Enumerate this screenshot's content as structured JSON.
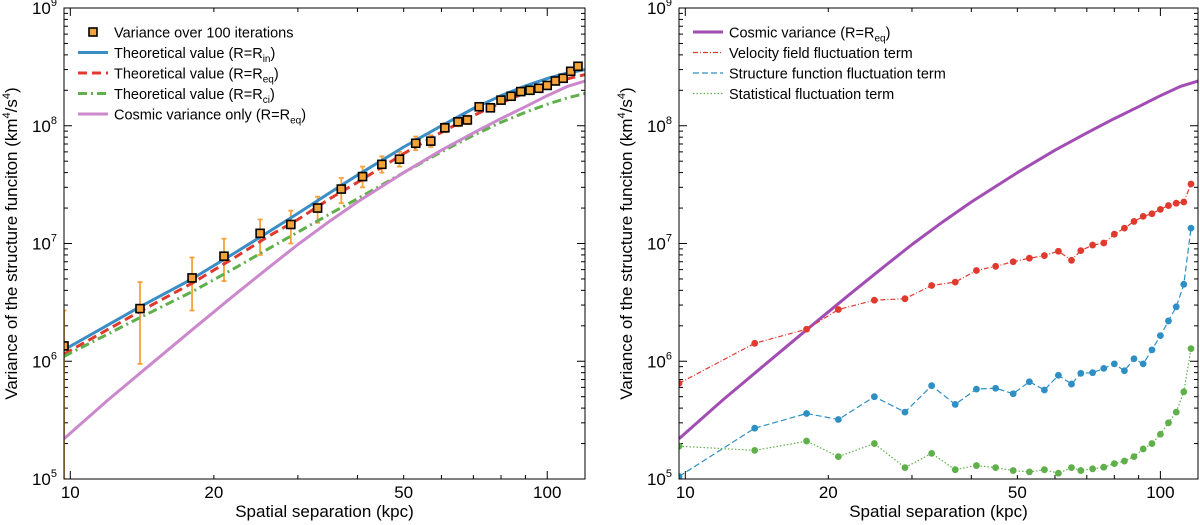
{
  "chart_data": [
    {
      "type": "line",
      "scale": "log-log",
      "xlabel": "Spatial separation (kpc)",
      "ylabel": "Variance of the structure funciton (km4/s4)",
      "ylabel_parts": {
        "pre": "Variance of the structure funciton (km",
        "sup1": "4",
        "mid": "/s",
        "sup2": "4",
        "post": ")"
      },
      "xlim": [
        9.7,
        120
      ],
      "ylim": [
        100000,
        1000000000
      ],
      "xticks": [
        {
          "value": 10,
          "label": "10"
        },
        {
          "value": 20,
          "label": "20"
        },
        {
          "value": 50,
          "label": "50"
        },
        {
          "value": 100,
          "label": "100"
        }
      ],
      "yticks": [
        {
          "value": 100000,
          "base": "10",
          "exp": "5"
        },
        {
          "value": 1000000,
          "base": "10",
          "exp": "6"
        },
        {
          "value": 10000000,
          "base": "10",
          "exp": "7"
        },
        {
          "value": 100000000,
          "base": "10",
          "exp": "8"
        },
        {
          "value": 1000000000,
          "base": "10",
          "exp": "9"
        }
      ],
      "legend_position": "top-left",
      "series": [
        {
          "name": "Theoretical value (R=Rin)",
          "label_main": "Theoretical value (R=R",
          "label_sub": "in",
          "label_end": ")",
          "color": "#3a8dc5",
          "style": "solid",
          "x": [
            9.7,
            14,
            18,
            22,
            26,
            30,
            35,
            40,
            50,
            60,
            70,
            80,
            90,
            100,
            110,
            120
          ],
          "y": [
            1250000,
            2900000,
            5000000,
            8200000,
            12500000,
            18000000,
            27000000,
            38000000,
            66000000,
            100000000,
            140000000,
            180000000,
            218000000,
            252000000,
            280000000,
            300000000
          ]
        },
        {
          "name": "Theoretical value (R=Req)",
          "label_main": "Theoretical value (R=R",
          "label_sub": "eq",
          "label_end": ")",
          "color": "#e03a2f",
          "style": "dashed",
          "x": [
            9.7,
            14,
            18,
            22,
            26,
            30,
            35,
            40,
            50,
            60,
            70,
            80,
            90,
            100,
            110,
            120
          ],
          "y": [
            1150000,
            2650000,
            4600000,
            7500000,
            11500000,
            16000000,
            24000000,
            33000000,
            58000000,
            88000000,
            122000000,
            157000000,
            190000000,
            220000000,
            250000000,
            272000000
          ]
        },
        {
          "name": "Theoretical value (R=Rci)",
          "label_main": "Theoretical value (R=R",
          "label_sub": "ci",
          "label_end": ")",
          "color": "#5fb04a",
          "style": "dashdot",
          "x": [
            9.7,
            14,
            18,
            22,
            26,
            30,
            35,
            40,
            50,
            60,
            70,
            80,
            90,
            100,
            110,
            120
          ],
          "y": [
            1100000,
            2350000,
            3900000,
            6100000,
            9000000,
            12500000,
            17800000,
            24000000,
            40000000,
            60000000,
            83000000,
            107000000,
            130000000,
            152000000,
            172000000,
            188000000
          ]
        },
        {
          "name": "Cosmic variance only (R=Req)",
          "label_main": "Cosmic variance only (R=R",
          "label_sub": "eq",
          "label_end": ")",
          "color": "#cc88cc",
          "style": "solid",
          "x": [
            9.7,
            12,
            15,
            18,
            22,
            26,
            30,
            35,
            40,
            50,
            60,
            70,
            80,
            90,
            100,
            110,
            120
          ],
          "y": [
            220000,
            470000,
            1000000,
            1850000,
            3600000,
            6200000,
            9800000,
            15500000,
            22500000,
            40000000,
            62000000,
            87000000,
            115000000,
            145000000,
            180000000,
            215000000,
            240000000
          ]
        }
      ],
      "points": {
        "name": "Variance over 100 iterations",
        "color": "#f4a23a",
        "x": [
          9.7,
          14,
          18,
          21,
          25,
          29,
          33,
          37,
          41,
          45,
          49,
          53,
          57,
          61,
          65,
          68,
          72,
          76,
          80,
          84,
          88,
          92,
          96,
          100,
          104,
          108,
          112,
          116
        ],
        "y": [
          1350000,
          2800000,
          5100000,
          7800000,
          12200000,
          14500000,
          20000000,
          29000000,
          37000000,
          47000000,
          52000000,
          71000000,
          74000000,
          96000000,
          108000000,
          112000000,
          145000000,
          142000000,
          165000000,
          178000000,
          195000000,
          200000000,
          208000000,
          220000000,
          240000000,
          253000000,
          290000000,
          320000000
        ],
        "err_lo": [
          100000,
          950000,
          2700000,
          4800000,
          8000000,
          10000000,
          15000000,
          22000000,
          30000000,
          40000000,
          45000000,
          62000000,
          66000000,
          88000000,
          99000000,
          103000000,
          135000000,
          132000000,
          155000000,
          168000000,
          185000000,
          191000000,
          199000000,
          211000000,
          231000000,
          244000000,
          280000000,
          310000000
        ],
        "err_hi": [
          2700000,
          4700000,
          7600000,
          11000000,
          16000000,
          19000000,
          25000000,
          36000000,
          45000000,
          55000000,
          60000000,
          81000000,
          83000000,
          106000000,
          118000000,
          122000000,
          156000000,
          152000000,
          176000000,
          189000000,
          206000000,
          210000000,
          218000000,
          230000000,
          250000000,
          263000000,
          300000000,
          331000000
        ]
      }
    },
    {
      "type": "line",
      "scale": "log-log",
      "xlabel": "Spatial separation (kpc)",
      "ylabel": "Variance of the structure funciton (km4/s4)",
      "ylabel_parts": {
        "pre": "Variance of the structure funciton (km",
        "sup1": "4",
        "mid": "/s",
        "sup2": "4",
        "post": ")"
      },
      "xlim": [
        9.7,
        120
      ],
      "ylim": [
        100000,
        1000000000
      ],
      "xticks": [
        {
          "value": 10,
          "label": "10"
        },
        {
          "value": 20,
          "label": "20"
        },
        {
          "value": 50,
          "label": "50"
        },
        {
          "value": 100,
          "label": "100"
        }
      ],
      "yticks": [
        {
          "value": 100000,
          "base": "10",
          "exp": "5"
        },
        {
          "value": 1000000,
          "base": "10",
          "exp": "6"
        },
        {
          "value": 10000000,
          "base": "10",
          "exp": "7"
        },
        {
          "value": 100000000,
          "base": "10",
          "exp": "8"
        },
        {
          "value": 1000000000,
          "base": "10",
          "exp": "9"
        }
      ],
      "legend_position": "top-left",
      "series": [
        {
          "name": "Cosmic variance (R=Req)",
          "label_main": "Cosmic variance (R=R",
          "label_sub": "eq",
          "label_end": ")",
          "color": "#a24db3",
          "style": "solid",
          "markers": false,
          "x": [
            9.7,
            12,
            15,
            18,
            22,
            26,
            30,
            35,
            40,
            50,
            60,
            70,
            80,
            90,
            100,
            110,
            120
          ],
          "y": [
            220000,
            470000,
            1000000,
            1850000,
            3600000,
            6200000,
            9800000,
            15500000,
            22500000,
            40000000,
            62000000,
            87000000,
            115000000,
            145000000,
            180000000,
            215000000,
            240000000
          ]
        },
        {
          "name": "Velocity field fluctuation term",
          "label_main": "Velocity field fluctuation term",
          "label_sub": "",
          "label_end": "",
          "color": "#e03a2f",
          "style": "dashdot",
          "markers": true,
          "x": [
            9.7,
            14,
            18,
            21,
            25,
            29,
            33,
            37,
            41,
            45,
            49,
            53,
            57,
            61,
            65,
            68,
            72,
            76,
            80,
            84,
            88,
            92,
            96,
            100,
            104,
            108,
            112,
            116
          ],
          "y": [
            650000,
            1420000,
            1870000,
            2750000,
            3300000,
            3400000,
            4400000,
            4700000,
            5900000,
            6400000,
            7000000,
            7500000,
            7900000,
            8600000,
            7200000,
            8700000,
            9700000,
            10100000,
            12000000,
            13500000,
            15400000,
            17000000,
            17900000,
            19500000,
            21000000,
            22000000,
            22500000,
            32000000
          ]
        },
        {
          "name": "Structure function fluctuation term",
          "label_main": "Structure function fluctuation term",
          "label_sub": "",
          "label_end": "",
          "color": "#2e8fc4",
          "style": "dashed",
          "markers": true,
          "x": [
            9.7,
            14,
            18,
            21,
            25,
            29,
            33,
            37,
            41,
            45,
            49,
            53,
            57,
            61,
            65,
            68,
            72,
            76,
            80,
            84,
            88,
            92,
            96,
            100,
            104,
            108,
            112,
            116
          ],
          "y": [
            105000,
            270000,
            360000,
            320000,
            500000,
            370000,
            620000,
            430000,
            580000,
            590000,
            530000,
            670000,
            570000,
            760000,
            640000,
            790000,
            800000,
            870000,
            950000,
            830000,
            1050000,
            950000,
            1250000,
            1650000,
            2200000,
            2900000,
            4500000,
            13500000
          ]
        },
        {
          "name": "Statistical fluctuation term",
          "label_main": "Statistical fluctuation term",
          "label_sub": "",
          "label_end": "",
          "color": "#5fb04a",
          "style": "dotted",
          "markers": true,
          "x": [
            9.7,
            14,
            18,
            21,
            25,
            29,
            33,
            37,
            41,
            45,
            49,
            53,
            57,
            61,
            65,
            68,
            72,
            76,
            80,
            84,
            88,
            92,
            96,
            100,
            104,
            108,
            112,
            116
          ],
          "y": [
            190000,
            175000,
            210000,
            155000,
            200000,
            125000,
            165000,
            120000,
            130000,
            125000,
            118000,
            115000,
            120000,
            112000,
            125000,
            118000,
            122000,
            126000,
            135000,
            142000,
            155000,
            180000,
            200000,
            240000,
            300000,
            370000,
            550000,
            1280000
          ]
        }
      ]
    }
  ]
}
